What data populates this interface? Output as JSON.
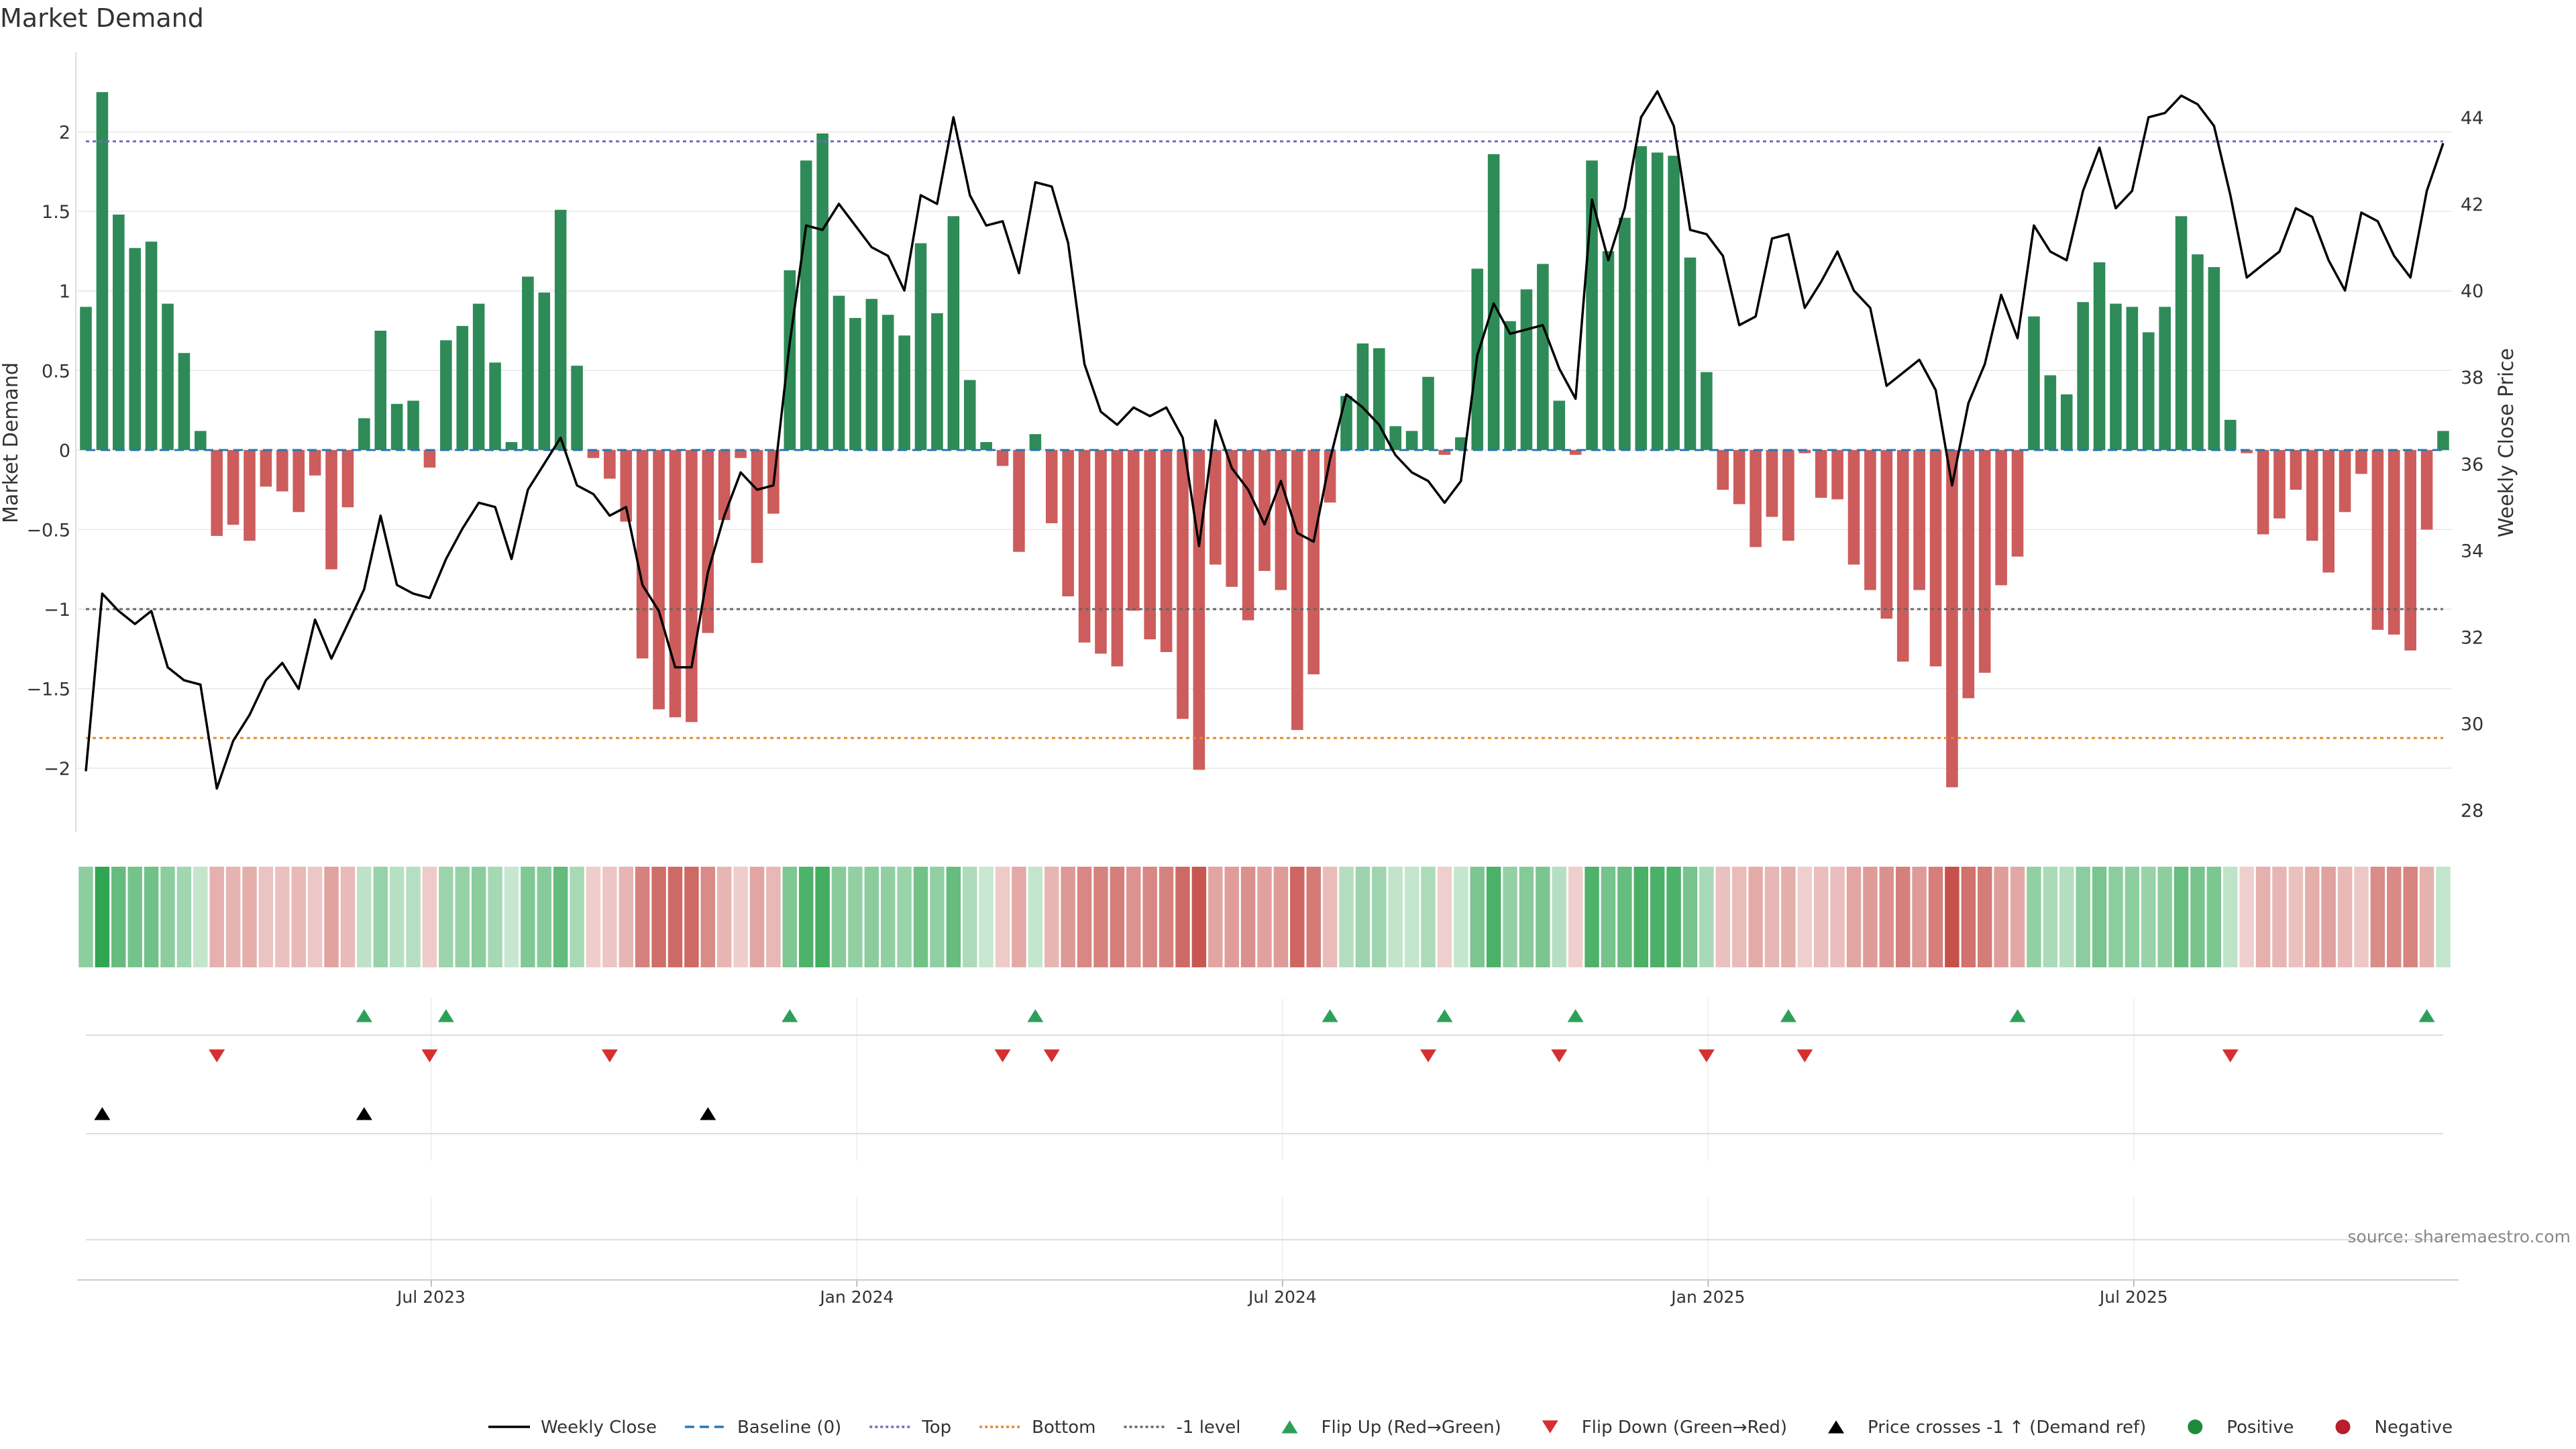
{
  "chart_data": {
    "type": "bar",
    "title": "Market Demand",
    "ylabel": "Market Demand",
    "ylabel_right": "Weekly Close Price",
    "ylim": [
      -2.4,
      2.5
    ],
    "ylim_right": [
      27.5,
      45.5
    ],
    "yticks": [
      -2,
      -1.5,
      -1,
      -0.5,
      0,
      0.5,
      1,
      1.5,
      2
    ],
    "ytick_labels": [
      "−2",
      "−1.5",
      "−1",
      "−0.5",
      "0",
      "0.5",
      "1",
      "1.5",
      "2"
    ],
    "yticks_right": [
      28,
      30,
      32,
      34,
      36,
      38,
      40,
      42,
      44
    ],
    "xticks": [
      {
        "index": 21,
        "label": "Jul 2023"
      },
      {
        "index": 47,
        "label": "Jan 2024"
      },
      {
        "index": 73,
        "label": "Jul 2024"
      },
      {
        "index": 99,
        "label": "Jan 2025"
      },
      {
        "index": 125,
        "label": "Jul 2025"
      }
    ],
    "lines": {
      "top": 1.94,
      "bottom": -1.81,
      "minus_one": -1.0
    },
    "demand": [
      0.9,
      2.25,
      1.48,
      1.27,
      1.31,
      0.92,
      0.61,
      0.12,
      -0.54,
      -0.47,
      -0.57,
      -0.23,
      -0.26,
      -0.39,
      -0.16,
      -0.75,
      -0.36,
      0.2,
      0.75,
      0.29,
      0.31,
      -0.11,
      0.69,
      0.78,
      0.92,
      0.55,
      0.05,
      1.09,
      0.99,
      1.51,
      0.53,
      -0.05,
      -0.18,
      -0.45,
      -1.31,
      -1.63,
      -1.68,
      -1.71,
      -1.15,
      -0.44,
      -0.05,
      -0.71,
      -0.4,
      1.13,
      1.82,
      1.99,
      0.97,
      0.83,
      0.95,
      0.85,
      0.72,
      1.3,
      0.86,
      1.47,
      0.44,
      0.05,
      -0.1,
      -0.64,
      0.1,
      -0.46,
      -0.92,
      -1.21,
      -1.28,
      -1.36,
      -1.01,
      -1.19,
      -1.27,
      -1.69,
      -2.01,
      -0.72,
      -0.86,
      -1.07,
      -0.76,
      -0.88,
      -1.76,
      -1.41,
      -0.33,
      0.34,
      0.67,
      0.64,
      0.15,
      0.12,
      0.46,
      -0.03,
      0.08,
      1.14,
      1.86,
      0.81,
      1.01,
      1.17,
      0.31,
      -0.03,
      1.82,
      1.25,
      1.46,
      1.91,
      1.87,
      1.85,
      1.21,
      0.49,
      -0.25,
      -0.34,
      -0.61,
      -0.42,
      -0.57,
      -0.02,
      -0.3,
      -0.31,
      -0.72,
      -0.88,
      -1.06,
      -1.33,
      -0.88,
      -1.36,
      -2.12,
      -1.56,
      -1.4,
      -0.85,
      -0.67,
      0.84,
      0.47,
      0.35,
      0.93,
      1.18,
      0.92,
      0.9,
      0.74,
      0.9,
      1.47,
      1.23,
      1.15,
      0.19,
      -0.02,
      -0.53,
      -0.43,
      -0.25,
      -0.57,
      -0.77,
      -0.39,
      -0.15,
      -1.13,
      -1.16,
      -1.26,
      -0.5,
      0.12
    ],
    "price": [
      28.9,
      33.0,
      32.6,
      32.3,
      32.6,
      31.3,
      31.0,
      30.9,
      28.5,
      29.6,
      30.2,
      31.0,
      31.4,
      30.8,
      32.4,
      31.5,
      32.3,
      33.1,
      34.8,
      33.2,
      33.0,
      32.9,
      33.8,
      34.5,
      35.1,
      35.0,
      33.8,
      35.4,
      36.0,
      36.6,
      35.5,
      35.3,
      34.8,
      35.0,
      33.2,
      32.6,
      31.3,
      31.3,
      33.5,
      34.8,
      35.8,
      35.4,
      35.5,
      38.8,
      41.5,
      41.4,
      42.0,
      41.5,
      41.0,
      40.8,
      40.0,
      42.2,
      42.0,
      44.0,
      42.2,
      41.5,
      41.6,
      40.4,
      42.5,
      42.4,
      41.1,
      38.3,
      37.2,
      36.9,
      37.3,
      37.1,
      37.3,
      36.6,
      34.1,
      37.0,
      35.9,
      35.4,
      34.6,
      35.6,
      34.4,
      34.2,
      36.1,
      37.6,
      37.3,
      36.9,
      36.2,
      35.8,
      35.6,
      35.1,
      35.6,
      38.5,
      39.7,
      39.0,
      39.1,
      39.2,
      38.2,
      37.5,
      42.1,
      40.7,
      41.9,
      44.0,
      44.6,
      43.8,
      41.4,
      41.3,
      40.8,
      39.2,
      39.4,
      41.2,
      41.3,
      39.6,
      40.2,
      40.9,
      40.0,
      39.6,
      37.8,
      38.1,
      38.4,
      37.7,
      35.5,
      37.4,
      38.3,
      39.9,
      38.9,
      41.5,
      40.9,
      40.7,
      42.3,
      43.3,
      41.9,
      42.3,
      44.0,
      44.1,
      44.5,
      44.3,
      43.8,
      42.2,
      40.3,
      40.6,
      40.9,
      41.9,
      41.7,
      40.7,
      40.0,
      41.8,
      41.6,
      40.8,
      40.3,
      42.3,
      43.4
    ],
    "flip_up": [
      17,
      22,
      43,
      58,
      76,
      83,
      91,
      104,
      118,
      143
    ],
    "flip_down": [
      8,
      21,
      32,
      56,
      59,
      82,
      90,
      99,
      105,
      131
    ],
    "price_cross": [
      1,
      17,
      38
    ],
    "annotation": "source: sharemaestro.com",
    "legend": {
      "position": "bottom",
      "entries": [
        {
          "label": "Weekly Close",
          "kind": "line-solid",
          "color": "#000000"
        },
        {
          "label": "Baseline (0)",
          "kind": "line-dash",
          "color": "#2878b5"
        },
        {
          "label": "Top",
          "kind": "line-dot",
          "color": "#6c6cc0"
        },
        {
          "label": "Bottom",
          "kind": "line-dot",
          "color": "#e08a2a"
        },
        {
          "label": "-1 level",
          "kind": "line-dot",
          "color": "#666666"
        },
        {
          "label": "Flip Up (Red→Green)",
          "kind": "tri-up",
          "color": "#2ca05a"
        },
        {
          "label": "Flip Down (Green→Red)",
          "kind": "tri-down",
          "color": "#d62f2f"
        },
        {
          "label": "Price crosses -1 ↑ (Demand ref)",
          "kind": "tri-up",
          "color": "#000000"
        },
        {
          "label": "Positive",
          "kind": "dot",
          "color": "#1e8a3a"
        },
        {
          "label": "Negative",
          "kind": "dot",
          "color": "#b81f2a"
        }
      ]
    },
    "colors": {
      "positive": "#2e8b57",
      "negative": "#cd5c5c",
      "price": "#000000",
      "baseline": "#2878b5",
      "top": "#6c6cc0",
      "bottom": "#e08a2a",
      "minus_one": "#666666",
      "flip_up": "#2ca05a",
      "flip_down": "#d62f2f",
      "cross": "#000000",
      "grid": "#e6e6e6",
      "text": "#333333"
    }
  }
}
